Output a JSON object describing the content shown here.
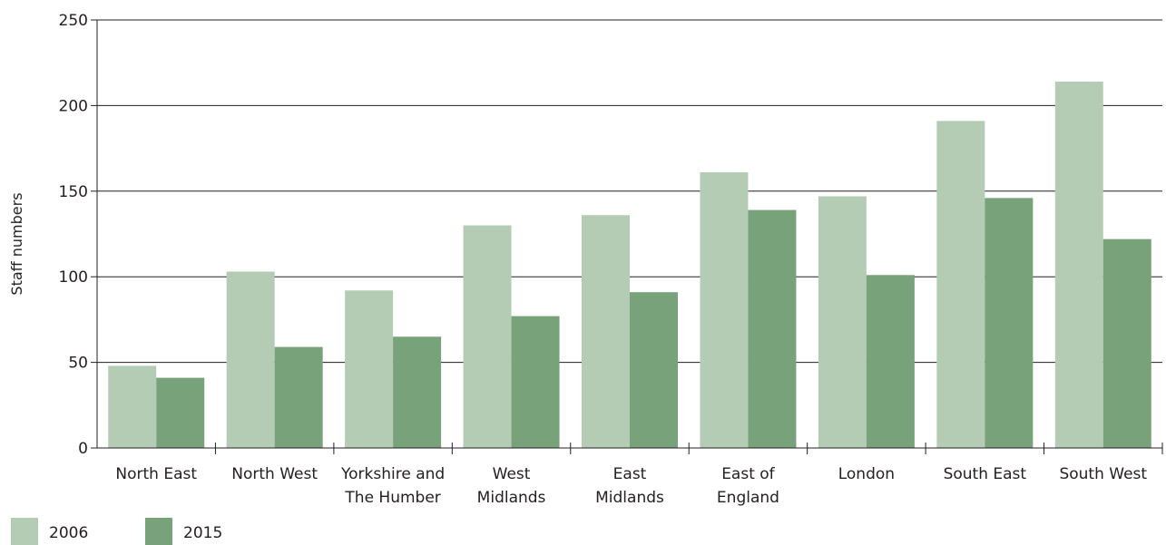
{
  "chart_data": {
    "type": "bar",
    "title": "",
    "xlabel": "",
    "ylabel": "Staff numbers",
    "ylim": [
      0,
      250
    ],
    "yticks": [
      "0",
      "50",
      "100",
      "150",
      "200",
      "250"
    ],
    "categories": [
      [
        "North East"
      ],
      [
        "North West"
      ],
      [
        "Yorkshire and",
        "The Humber"
      ],
      [
        "West",
        "Midlands"
      ],
      [
        "East",
        "Midlands"
      ],
      [
        "East of",
        "England"
      ],
      [
        "London"
      ],
      [
        "South East"
      ],
      [
        "South West"
      ]
    ],
    "series": [
      {
        "name": "2006",
        "color": "#b5ccb4",
        "values": [
          48,
          103,
          92,
          130,
          136,
          161,
          147,
          191,
          214
        ]
      },
      {
        "name": "2015",
        "color": "#78a27a",
        "values": [
          41,
          59,
          65,
          77,
          91,
          139,
          101,
          146,
          122
        ]
      }
    ],
    "grid": true,
    "legend": "bottom-left"
  }
}
